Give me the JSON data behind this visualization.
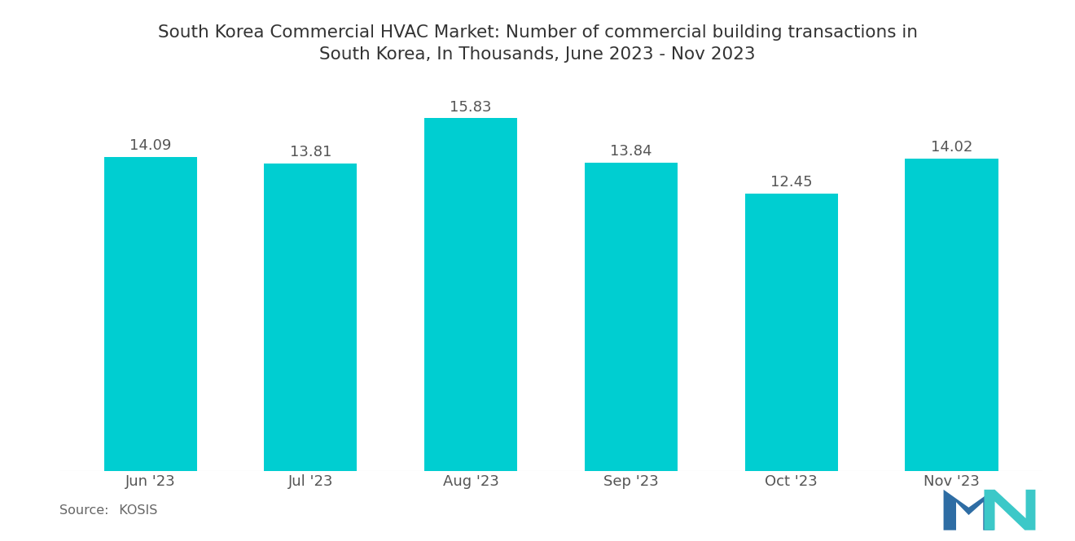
{
  "title_line1": "South Korea Commercial HVAC Market: Number of commercial building transactions in",
  "title_line2": "South Korea, In Thousands, June 2023 - Nov 2023",
  "categories": [
    "Jun '23",
    "Jul '23",
    "Aug '23",
    "Sep '23",
    "Oct '23",
    "Nov '23"
  ],
  "values": [
    14.09,
    13.81,
    15.83,
    13.84,
    12.45,
    14.02
  ],
  "bar_color": "#00CED1",
  "background_color": "#ffffff",
  "title_fontsize": 15.5,
  "label_fontsize": 13,
  "value_fontsize": 13,
  "source_label": "Source:",
  "source_value": "  KOSIS",
  "ylim": [
    0,
    17.5
  ],
  "bar_width": 0.58,
  "logo_blue": "#2E6DA4",
  "logo_teal": "#3CC8C8"
}
